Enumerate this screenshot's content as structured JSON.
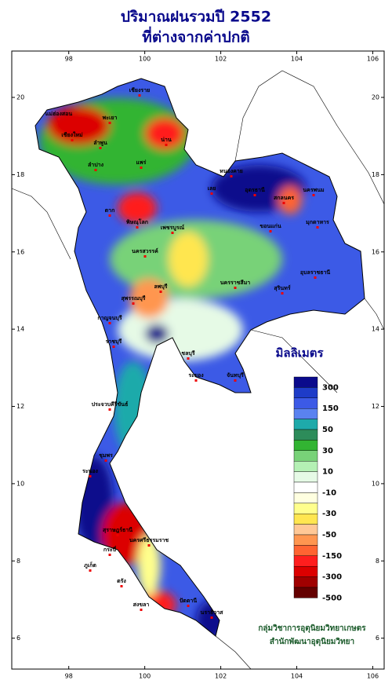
{
  "title": [
    "ปริมาณฝนรวมปี 2552",
    "ที่ต่างจากค่าปกติ"
  ],
  "map": {
    "xlim": [
      96.5,
      106.3
    ],
    "ylim": [
      5.2,
      21.2
    ],
    "xticks": [
      98,
      100,
      102,
      104,
      106
    ],
    "yticks": [
      6,
      8,
      10,
      12,
      14,
      16,
      18,
      20
    ],
    "places": [
      "เชียงราย",
      "พะเยา",
      "น่าน",
      "แม่ฮ่องสอน",
      "เชียงใหม่",
      "ลำพูน",
      "ลำปาง",
      "แพร่",
      "ตาก",
      "พิษณุโลก",
      "เพชรบูรณ์",
      "เลย",
      "หนองคาย",
      "อุดรธานี",
      "สกลนคร",
      "นครพนม",
      "มุกดาหาร",
      "ขอนแก่น",
      "นครสวรรค์",
      "ลพบุรี",
      "สุพรรณบุรี",
      "กาญจนบุรี",
      "ราชบุรี",
      "ชลบุรี",
      "ระยอง",
      "จันทบุรี",
      "นครราชสีมา",
      "สุรินทร์",
      "อุบลราชธานี",
      "ประจวบคีรีขันธ์",
      "ชุมพร",
      "ระนอง",
      "สุราษฎร์ธานี",
      "นครศรีธรรมราช",
      "ภูเก็ต",
      "กระบี่",
      "ตรัง",
      "สงขลา",
      "ปัตตานี",
      "นราธิวาส"
    ]
  },
  "legend": {
    "title": "มิลลิเมตร",
    "colors": [
      "#0a0a8c",
      "#1e3cc8",
      "#3c5ae6",
      "#5a82f0",
      "#1eaaaa",
      "#2d8c5a",
      "#32b432",
      "#78d278",
      "#b4f0b4",
      "#e6fae6",
      "#ffffff",
      "#ffffe0",
      "#ffff8c",
      "#ffe650",
      "#ffc896",
      "#ff9650",
      "#ff6432",
      "#ff1e1e",
      "#dc0000",
      "#a00000",
      "#640000"
    ],
    "ticks": [
      300,
      150,
      50,
      30,
      10,
      -10,
      -30,
      -50,
      -150,
      -300,
      -500
    ]
  },
  "credits": [
    "กลุ่มวิชาการอุตุนิยมวิทยาเกษตร",
    "สำนักพัฒนาอุตุนิยมวิทยา"
  ]
}
